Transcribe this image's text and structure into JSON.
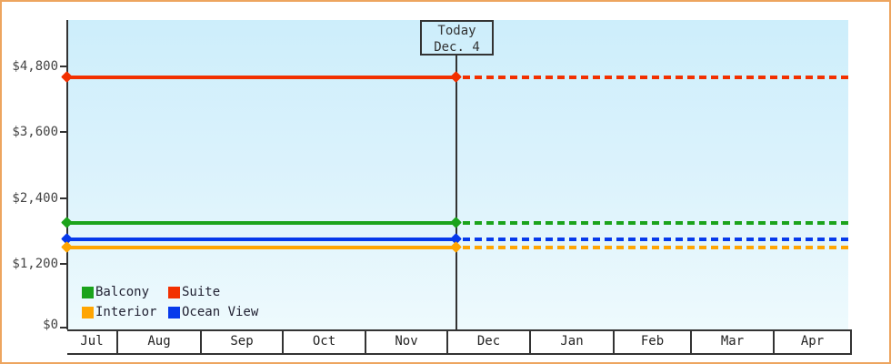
{
  "chart_data": {
    "type": "line",
    "title": "",
    "x_categories": [
      "Jul",
      "Aug",
      "Sep",
      "Oct",
      "Nov",
      "Dec",
      "Jan",
      "Feb",
      "Mar",
      "Apr"
    ],
    "y_axis": {
      "min": 0,
      "max": 4800,
      "ticks": [
        {
          "label": "$4,800",
          "value": 4800
        },
        {
          "label": "$3,600",
          "value": 3600
        },
        {
          "label": "$2,400",
          "value": 2400
        },
        {
          "label": "$1,200",
          "value": 1200
        },
        {
          "label": "$0",
          "value": 0
        }
      ]
    },
    "series": [
      {
        "name": "Suite",
        "color": "#f23000",
        "value": 4599,
        "past_style": "solid",
        "future_style": "dotted"
      },
      {
        "name": "Balcony",
        "color": "#1ba31b",
        "value": 1949,
        "past_style": "solid",
        "future_style": "dotted"
      },
      {
        "name": "Ocean View",
        "color": "#0639eb",
        "value": 1649,
        "past_style": "solid",
        "future_style": "dotted"
      },
      {
        "name": "Interior",
        "color": "#ffa502",
        "value": 1499,
        "past_style": "solid",
        "future_style": "dotted"
      }
    ],
    "today": {
      "line1": "Today",
      "line2": "Dec. 4",
      "x_category": "Dec"
    },
    "legend": {
      "position": "bottom-left",
      "entries": [
        "Balcony",
        "Suite",
        "Interior",
        "Ocean View"
      ]
    },
    "grid": "off",
    "plot_background": {
      "top": "#cdeefb",
      "bottom": "#eefafd"
    },
    "frame_border_color": "#eda55f",
    "axis_color": "#333333"
  }
}
